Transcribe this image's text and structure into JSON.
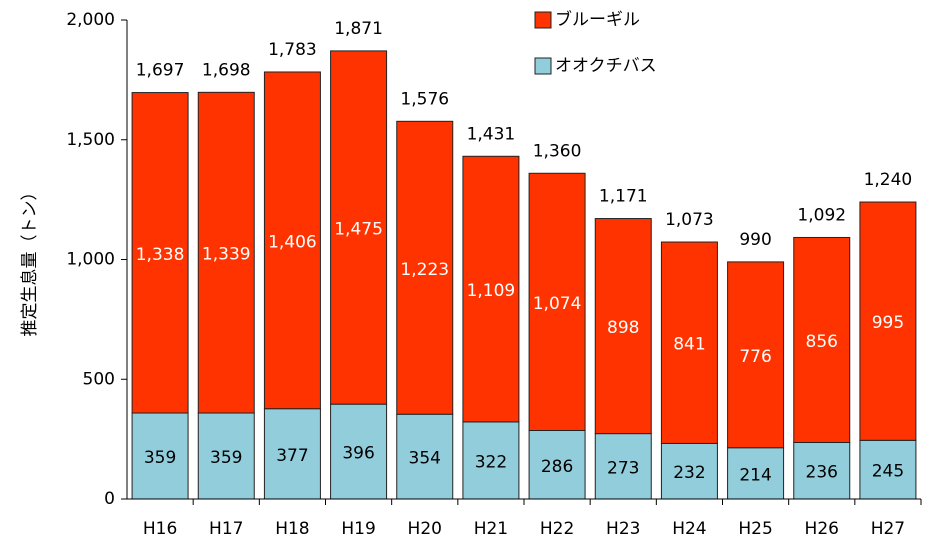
{
  "chart_data": {
    "type": "stacked-bar",
    "y_label": "推定生息量（トン）",
    "categories": [
      "H16",
      "H17",
      "H18",
      "H19",
      "H20",
      "H21",
      "H22",
      "H23",
      "H24",
      "H25",
      "H26",
      "H27"
    ],
    "series": [
      {
        "name": "オオクチバス",
        "color": "#92cddc",
        "label_color": "#000000",
        "values": [
          359,
          359,
          377,
          396,
          354,
          322,
          286,
          273,
          232,
          214,
          236,
          245
        ]
      },
      {
        "name": "ブルーギル",
        "color": "#ff3300",
        "label_color": "#ffffff",
        "values": [
          1338,
          1339,
          1406,
          1475,
          1223,
          1109,
          1074,
          898,
          841,
          776,
          856,
          995
        ],
        "value_labels": [
          "1,338",
          "1,339",
          "1,406",
          "1,475",
          "1,223",
          "1,109",
          "1,074",
          "898",
          "841",
          "776",
          "856",
          "995"
        ]
      }
    ],
    "totals": [
      1697,
      1698,
      1783,
      1871,
      1576,
      1431,
      1360,
      1171,
      1073,
      990,
      1092,
      1240
    ],
    "total_labels": [
      "1,697",
      "1,698",
      "1,783",
      "1,871",
      "1,576",
      "1,431",
      "1,360",
      "1,171",
      "1,073",
      "990",
      "1,092",
      "1,240"
    ],
    "ylim": [
      0,
      2000
    ],
    "yticks": [
      0,
      500,
      {
        "value": 1000,
        "label": "1,000"
      },
      {
        "value": 1500,
        "label": "1,500"
      },
      {
        "value": 2000,
        "label": "2,000"
      }
    ],
    "legend": "top-right"
  }
}
